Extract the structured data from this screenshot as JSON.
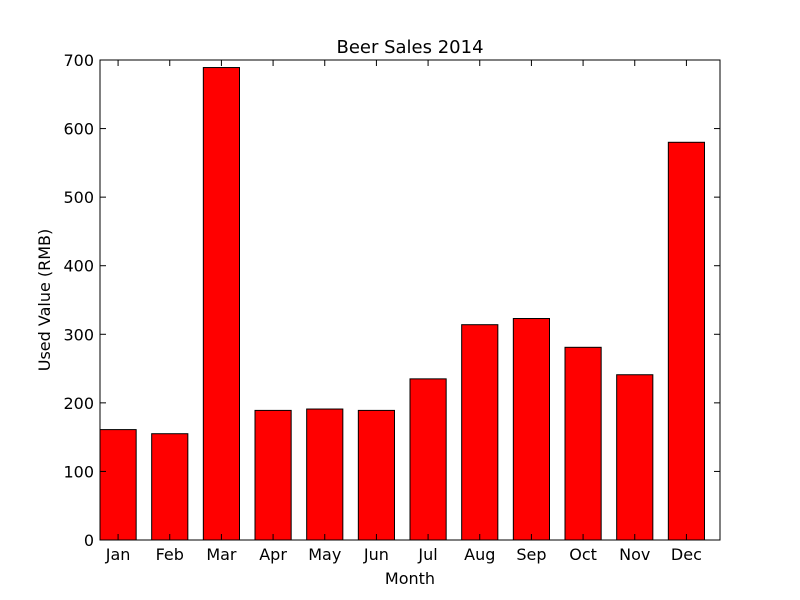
{
  "chart_data": {
    "type": "bar",
    "title": "Beer Sales 2014",
    "xlabel": "Month",
    "ylabel": "Used Value (RMB)",
    "categories": [
      "Jan",
      "Feb",
      "Mar",
      "Apr",
      "May",
      "Jun",
      "Jul",
      "Aug",
      "Sep",
      "Oct",
      "Nov",
      "Dec"
    ],
    "values": [
      161,
      155,
      689,
      189,
      191,
      189,
      235,
      314,
      323,
      281,
      241,
      580
    ],
    "ylim": [
      0,
      700
    ],
    "yticks": [
      "0",
      "100",
      "200",
      "300",
      "400",
      "500",
      "600",
      "700"
    ],
    "bar_color": "#ff0000",
    "edge_color": "#000000",
    "grid": false
  }
}
